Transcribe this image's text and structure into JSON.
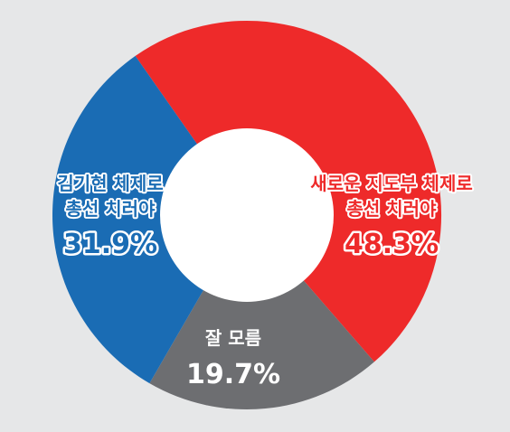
{
  "chart_data": {
    "type": "pie",
    "variant": "donut",
    "slices": [
      {
        "label_lines": [
          "새로운 지도부 체제로",
          "총선 치러야"
        ],
        "value": 48.3,
        "value_label": "48.3%",
        "color": "#ee2a2a",
        "text_color": "#ee2a2a"
      },
      {
        "label_lines": [
          "잘 모름"
        ],
        "value": 19.7,
        "value_label": "19.7%",
        "color": "#6d6e71",
        "text_color": "#ffffff"
      },
      {
        "label_lines": [
          "김기현 체제로",
          "총선 치러야"
        ],
        "value": 31.9,
        "value_label": "31.9%",
        "color": "#1a6cb4",
        "text_color": "#1a6cb4"
      }
    ],
    "background": "#e6e7e8",
    "hole_color": "#ffffff",
    "label_outline_color": "#ffffff"
  }
}
